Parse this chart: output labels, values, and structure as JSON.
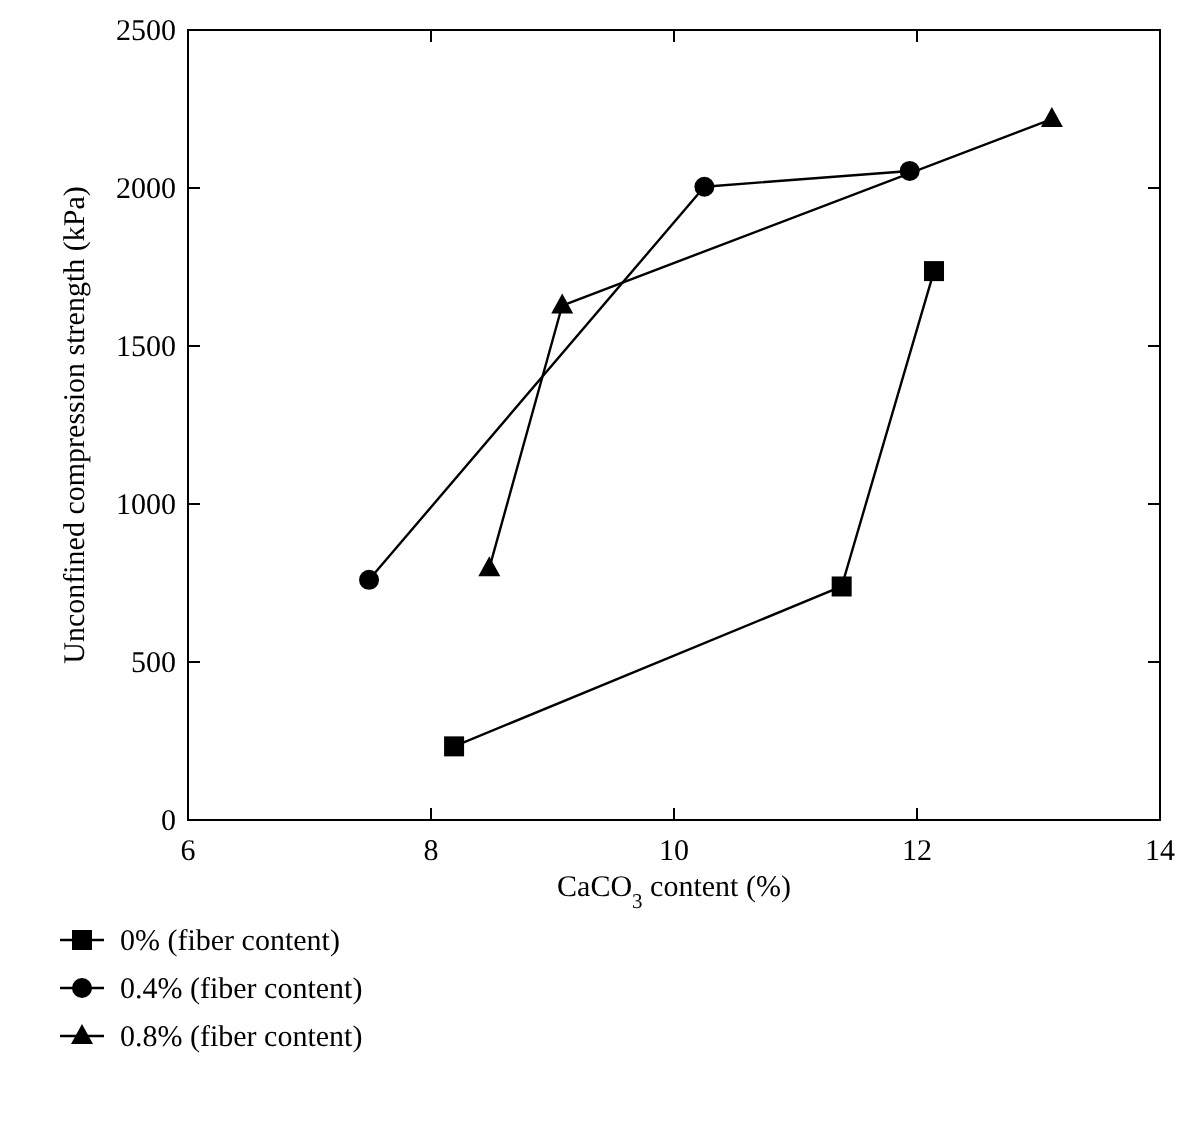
{
  "chart_data": {
    "type": "line",
    "xlabel": "CaCO$_{3}$ content (%)",
    "ylabel": "Unconfined compression strength (kPa)",
    "xlim": [
      6,
      14
    ],
    "xticks": [
      6,
      8,
      10,
      12,
      14
    ],
    "ylim": [
      0,
      2500
    ],
    "yticks": [
      0,
      500,
      1000,
      1500,
      2000,
      2500
    ],
    "grid": false,
    "legend": "bottom",
    "line_style": "solid",
    "series": [
      {
        "name": "0% (fiber content)",
        "color": "#000000",
        "marker": "square",
        "x": [
          8.19,
          11.38,
          12.14
        ],
        "values": [
          233,
          739,
          1737
        ]
      },
      {
        "name": "0.4% (fiber content)",
        "color": "#000000",
        "marker": "circle",
        "x": [
          7.49,
          10.25,
          11.94
        ],
        "values": [
          760,
          2004,
          2054
        ]
      },
      {
        "name": "0.8% (fiber content)",
        "color": "#000000",
        "marker": "triangle",
        "x": [
          8.48,
          9.08,
          13.11
        ],
        "values": [
          797,
          1628,
          2218
        ]
      }
    ]
  }
}
